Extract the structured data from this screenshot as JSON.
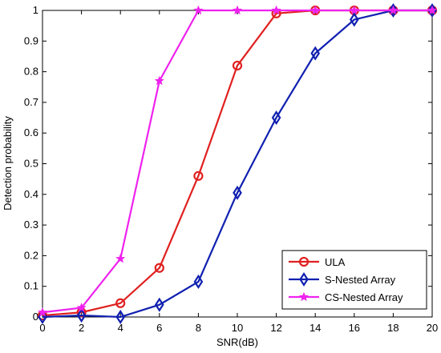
{
  "chart_data": {
    "type": "line",
    "xlabel": "SNR(dB)",
    "ylabel": "Detection probability",
    "xlim": [
      0,
      20
    ],
    "ylim": [
      0,
      1
    ],
    "xticks": [
      "0",
      "2",
      "4",
      "6",
      "8",
      "10",
      "12",
      "14",
      "16",
      "18",
      "20"
    ],
    "yticks": [
      "0",
      "0.1",
      "0.2",
      "0.3",
      "0.4",
      "0.5",
      "0.6",
      "0.7",
      "0.8",
      "0.9",
      "1"
    ],
    "grid": false,
    "legend_position": "bottom-right",
    "x": [
      0,
      2,
      4,
      6,
      8,
      10,
      12,
      14,
      16,
      18,
      20
    ],
    "series": [
      {
        "name": "ULA",
        "color": "#e02020",
        "marker": "circle",
        "values": [
          0.005,
          0.015,
          0.045,
          0.16,
          0.46,
          0.82,
          0.99,
          1.0,
          1.0,
          1.0,
          1.0
        ]
      },
      {
        "name": "S-Nested Array",
        "color": "#1020b0",
        "marker": "diamond",
        "values": [
          0.0,
          0.005,
          0.0,
          0.04,
          0.115,
          0.405,
          0.65,
          0.86,
          0.97,
          1.0,
          1.0
        ]
      },
      {
        "name": "CS-Nested Array",
        "color": "#ee22ee",
        "marker": "star",
        "values": [
          0.015,
          0.03,
          0.19,
          0.77,
          1.0,
          1.0,
          1.0,
          1.0,
          1.0,
          1.0,
          1.0
        ]
      }
    ]
  }
}
